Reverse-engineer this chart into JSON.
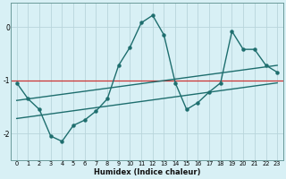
{
  "xlabel": "Humidex (Indice chaleur)",
  "xlim": [
    -0.5,
    23.5
  ],
  "ylim": [
    -2.5,
    0.45
  ],
  "yticks": [
    0,
    -1,
    -2
  ],
  "xticks": [
    0,
    1,
    2,
    3,
    4,
    5,
    6,
    7,
    8,
    9,
    10,
    11,
    12,
    13,
    14,
    15,
    16,
    17,
    18,
    19,
    20,
    21,
    22,
    23
  ],
  "bg_color": "#d8f0f5",
  "grid_color": "#b8d5db",
  "line_color": "#1e6e6e",
  "hline_color": "#cc3333",
  "hline_y": -1.0,
  "zigzag_x": [
    0,
    1,
    2,
    3,
    4,
    5,
    6,
    7,
    8,
    9,
    10,
    11,
    12,
    13,
    14,
    15,
    16,
    17,
    18,
    19,
    20,
    21,
    22,
    23
  ],
  "zigzag_y": [
    -1.05,
    -1.35,
    -1.55,
    -2.05,
    -2.15,
    -1.85,
    -1.75,
    -1.58,
    -1.35,
    -0.72,
    -0.38,
    0.08,
    0.22,
    -0.15,
    -1.05,
    -1.55,
    -1.42,
    -1.22,
    -1.05,
    -0.08,
    -0.42,
    -0.42,
    -0.72,
    -0.85
  ],
  "trend1_x": [
    0,
    23
  ],
  "trend1_y": [
    -1.38,
    -0.72
  ],
  "trend2_x": [
    0,
    23
  ],
  "trend2_y": [
    -1.72,
    -1.05
  ]
}
